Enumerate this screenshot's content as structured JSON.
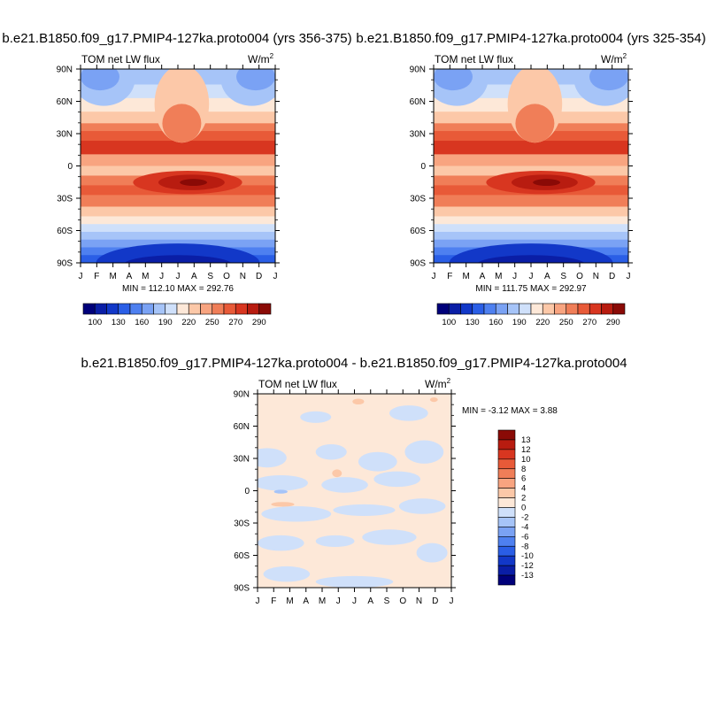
{
  "chart_data": [
    {
      "type": "heatmap",
      "title": "b.e21.B1850.f09_g17.PMIP4-127ka.proto004 (yrs 356-375)",
      "left_label": "TOM net LW flux",
      "units": "W/m",
      "units_sup": "2",
      "x": [
        "J",
        "F",
        "M",
        "A",
        "M",
        "J",
        "J",
        "A",
        "S",
        "O",
        "N",
        "D",
        "J"
      ],
      "y": [
        "90N",
        "60N",
        "30N",
        "0",
        "30S",
        "60S",
        "90S"
      ],
      "stats": "MIN = 112.10 MAX = 292.76",
      "colorbar": {
        "labels": [
          "100",
          "130",
          "160",
          "190",
          "220",
          "250",
          "270",
          "290"
        ],
        "colors": [
          "#00007a",
          "#0a1ea6",
          "#1238c8",
          "#2a5ee6",
          "#4e80f0",
          "#7aa2f4",
          "#a6c4f8",
          "#cfe0fa",
          "#fde8d8",
          "#fcc8a8",
          "#f8a480",
          "#f07e58",
          "#e85a38",
          "#d83620",
          "#b81c10",
          "#8a0a06"
        ]
      }
    },
    {
      "type": "heatmap",
      "title": "b.e21.B1850.f09_g17.PMIP4-127ka.proto004 (yrs 325-354)",
      "left_label": "TOM net LW flux",
      "units": "W/m",
      "units_sup": "2",
      "x": [
        "J",
        "F",
        "M",
        "A",
        "M",
        "J",
        "J",
        "A",
        "S",
        "O",
        "N",
        "D",
        "J"
      ],
      "y": [
        "90N",
        "60N",
        "30N",
        "0",
        "30S",
        "60S",
        "90S"
      ],
      "stats": "MIN = 111.75 MAX = 292.97",
      "colorbar": {
        "labels": [
          "100",
          "130",
          "160",
          "190",
          "220",
          "250",
          "270",
          "290"
        ],
        "colors": [
          "#00007a",
          "#0a1ea6",
          "#1238c8",
          "#2a5ee6",
          "#4e80f0",
          "#7aa2f4",
          "#a6c4f8",
          "#cfe0fa",
          "#fde8d8",
          "#fcc8a8",
          "#f8a480",
          "#f07e58",
          "#e85a38",
          "#d83620",
          "#b81c10",
          "#8a0a06"
        ]
      }
    },
    {
      "type": "heatmap",
      "title": "b.e21.B1850.f09_g17.PMIP4-127ka.proto004 - b.e21.B1850.f09_g17.PMIP4-127ka.proto004",
      "left_label": "TOM net LW flux",
      "units": "W/m",
      "units_sup": "2",
      "x": [
        "J",
        "F",
        "M",
        "A",
        "M",
        "J",
        "J",
        "A",
        "S",
        "O",
        "N",
        "D",
        "J"
      ],
      "y": [
        "90N",
        "60N",
        "30N",
        "0",
        "30S",
        "60S",
        "90S"
      ],
      "stats": "MIN =  -3.12 MAX =   3.88",
      "colorbar": {
        "labels": [
          "13",
          "12",
          "10",
          "8",
          "6",
          "4",
          "2",
          "0",
          "-2",
          "-4",
          "-6",
          "-8",
          "-10",
          "-12",
          "-13"
        ],
        "colors": [
          "#8a0a06",
          "#b81c10",
          "#d83620",
          "#e85a38",
          "#f07e58",
          "#f8a480",
          "#fcc8a8",
          "#fde8d8",
          "#cfe0fa",
          "#a6c4f8",
          "#7aa2f4",
          "#4e80f0",
          "#2a5ee6",
          "#1238c8",
          "#0a1ea6",
          "#00007a"
        ]
      }
    }
  ]
}
